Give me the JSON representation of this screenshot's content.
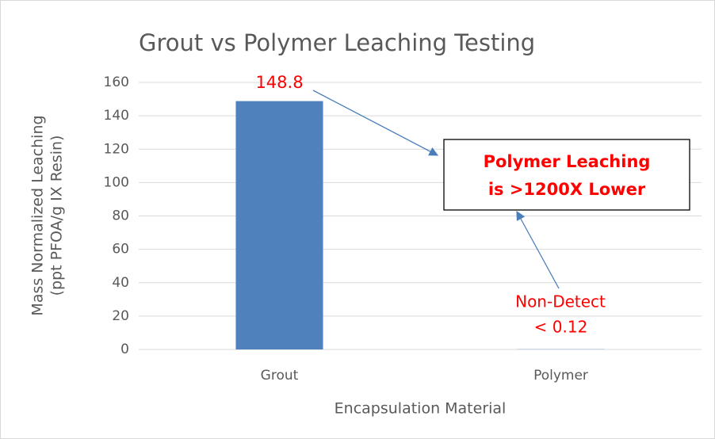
{
  "chart_data": {
    "type": "bar",
    "title": "Grout vs Polymer Leaching Testing",
    "xlabel": "Encapsulation Material",
    "ylabel": [
      "Mass Normalized Leaching",
      "(ppt PFOA/g IX Resin)"
    ],
    "categories": [
      "Grout",
      "Polymer"
    ],
    "values": [
      148.8,
      0.12
    ],
    "value_labels": [
      "148.8",
      "< 0.12"
    ],
    "color": "#4f81bd",
    "ylim": [
      0,
      160
    ],
    "yticks": [
      0,
      20,
      40,
      60,
      80,
      100,
      120,
      140,
      160
    ],
    "grid": true,
    "annotations": {
      "box": [
        "Polymer Leaching",
        "is >1200X Lower"
      ],
      "note": "Non-Detect"
    }
  }
}
